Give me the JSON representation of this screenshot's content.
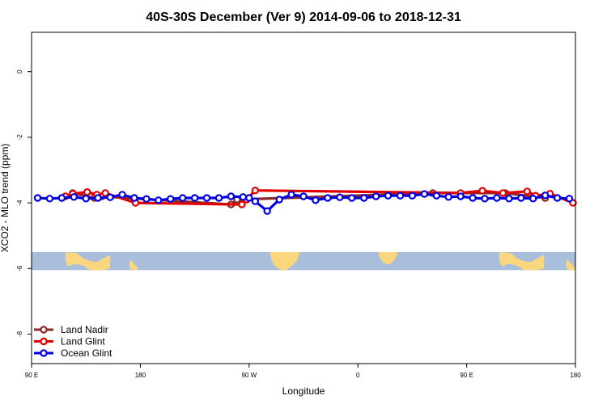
{
  "chart_data": {
    "type": "line",
    "title": "40S-30S December (Ver 9)   2014-09-06 to 2018-12-31",
    "xlabel": "Longitude",
    "ylabel": "XCO2 - MLO trend (ppm)",
    "xlim": [
      90,
      540
    ],
    "ylim": [
      -8.9,
      1.2
    ],
    "x_ticks": [
      {
        "value": 90,
        "label": "90 E"
      },
      {
        "value": 180,
        "label": "180"
      },
      {
        "value": 270,
        "label": "90 W"
      },
      {
        "value": 360,
        "label": "0"
      },
      {
        "value": 450,
        "label": "90 E"
      },
      {
        "value": 540,
        "label": "180"
      }
    ],
    "y_ticks": [
      {
        "value": 0,
        "label": "0"
      },
      {
        "value": -2,
        "label": "-2"
      },
      {
        "value": -4,
        "label": "-4"
      },
      {
        "value": -6,
        "label": "-6"
      },
      {
        "value": -8,
        "label": "-8"
      }
    ],
    "map_band": {
      "ymin": -6.05,
      "ymax": -5.5,
      "ocean_color": "#a8bedb",
      "land_color": "#fad67e"
    },
    "legend_position": "bottom-left",
    "series": [
      {
        "name": "Land Nadir",
        "color": "#8b2a2a",
        "x": [
          124,
          142,
          148,
          255,
          260,
          422,
          482,
          515
        ],
        "y": [
          -3.7,
          -3.85,
          -3.8,
          -4.05,
          -3.9,
          -3.7,
          -3.7,
          -3.85
        ]
      },
      {
        "name": "Land Glint",
        "color": "#e00000",
        "x": [
          118,
          124,
          136,
          144,
          151,
          176,
          264,
          268,
          275,
          445,
          463,
          480,
          500,
          507,
          519,
          538
        ],
        "y": [
          -3.8,
          -3.72,
          -3.67,
          -3.75,
          -3.7,
          -4.0,
          -4.05,
          -3.9,
          -3.62,
          -3.7,
          -3.63,
          -3.7,
          -3.65,
          -3.78,
          -3.72,
          -4.0
        ]
      },
      {
        "name": "Ocean Glint",
        "color": "#0000e0",
        "x": [
          95,
          105,
          115,
          125,
          135,
          145,
          155,
          165,
          175,
          185,
          195,
          205,
          215,
          225,
          235,
          245,
          255,
          265,
          270,
          275,
          285,
          295,
          305,
          315,
          325,
          335,
          345,
          355,
          365,
          375,
          385,
          395,
          405,
          415,
          425,
          435,
          445,
          455,
          465,
          475,
          485,
          495,
          505,
          515,
          525,
          535
        ],
        "y": [
          -3.85,
          -3.87,
          -3.85,
          -3.82,
          -3.87,
          -3.85,
          -3.83,
          -3.75,
          -3.85,
          -3.88,
          -3.92,
          -3.88,
          -3.85,
          -3.85,
          -3.85,
          -3.85,
          -3.8,
          -3.82,
          -3.85,
          -3.95,
          -4.25,
          -3.9,
          -3.75,
          -3.8,
          -3.92,
          -3.85,
          -3.83,
          -3.85,
          -3.85,
          -3.8,
          -3.78,
          -3.78,
          -3.78,
          -3.73,
          -3.78,
          -3.82,
          -3.8,
          -3.85,
          -3.87,
          -3.85,
          -3.87,
          -3.85,
          -3.87,
          -3.77,
          -3.85,
          -3.87
        ]
      }
    ]
  }
}
